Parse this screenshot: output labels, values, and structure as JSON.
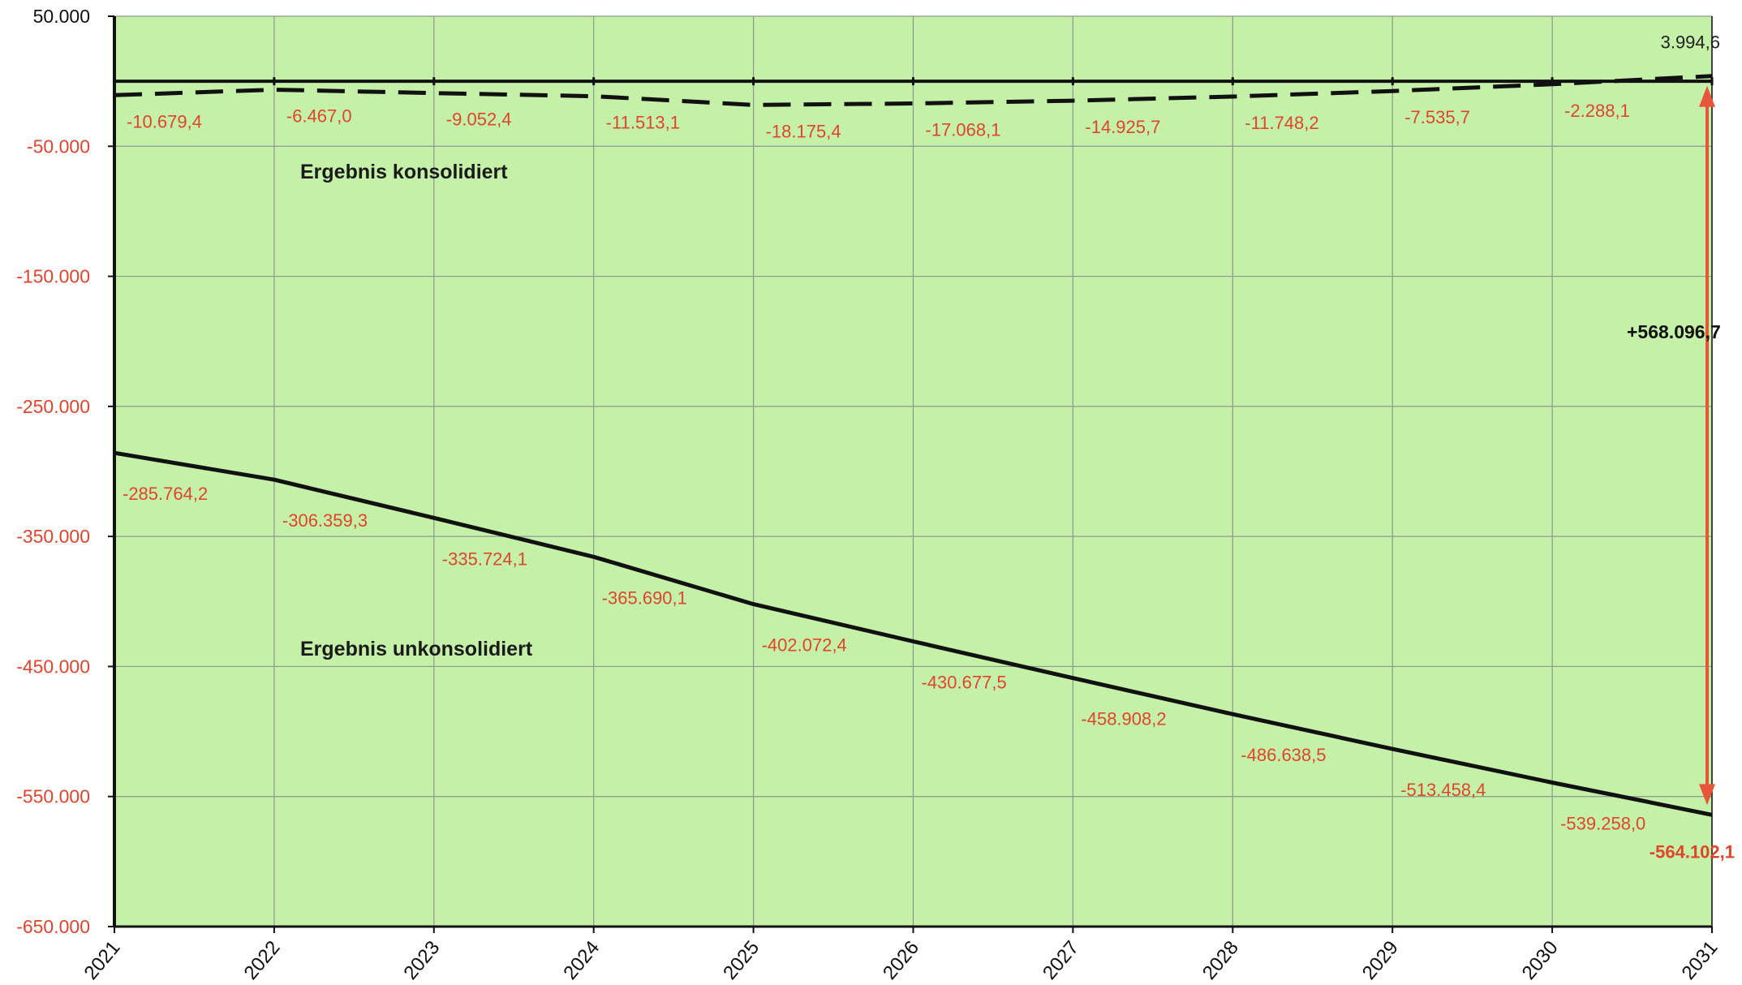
{
  "colors": {
    "plot_bg": "#c4f0a8",
    "grid": "#8a9a8a",
    "axis": "#111111",
    "label_red": "#e0452c",
    "arrow": "#e8553a"
  },
  "chart_data": {
    "type": "line",
    "x": [
      "2021",
      "2022",
      "2023",
      "2024",
      "2025",
      "2026",
      "2027",
      "2028",
      "2029",
      "2030",
      "2031"
    ],
    "ylim": [
      -650000,
      50000
    ],
    "yticks": [
      50000,
      -50000,
      -150000,
      -250000,
      -350000,
      -450000,
      -550000,
      -650000
    ],
    "ytick_labels": [
      "50.000",
      "-50.000",
      "-150.000",
      "-250.000",
      "-350.000",
      "-450.000",
      "-550.000",
      "-650.000"
    ],
    "grid": true,
    "series": [
      {
        "name": "Ergebnis konsolidiert",
        "style": "dashed",
        "values": [
          -10679.4,
          -6467.0,
          -9052.4,
          -11513.1,
          -18175.4,
          -17068.1,
          -14925.7,
          -11748.2,
          -7535.7,
          -2288.1,
          3994.6
        ],
        "labels": [
          "-10.679,4",
          "-6.467,0",
          "-9.052,4",
          "-11.513,1",
          "-18.175,4",
          "-17.068,1",
          "-14.925,7",
          "-11.748,2",
          "-7.535,7",
          "-2.288,1",
          "3.994,6"
        ]
      },
      {
        "name": "Ergebnis unkonsolidiert",
        "style": "solid",
        "values": [
          -285764.2,
          -306359.3,
          -335724.1,
          -365690.1,
          -402072.4,
          -430677.5,
          -458908.2,
          -486638.5,
          -513458.4,
          -539258.0,
          -564102.1
        ],
        "labels": [
          "-285.764,2",
          "-306.359,3",
          "-335.724,1",
          "-365.690,1",
          "-402.072,4",
          "-430.677,5",
          "-458.908,2",
          "-486.638,5",
          "-513.458,4",
          "-539.258,0",
          "-564.102,1"
        ]
      }
    ],
    "reference_line": 0,
    "difference": {
      "label": "+568.096,7"
    }
  }
}
